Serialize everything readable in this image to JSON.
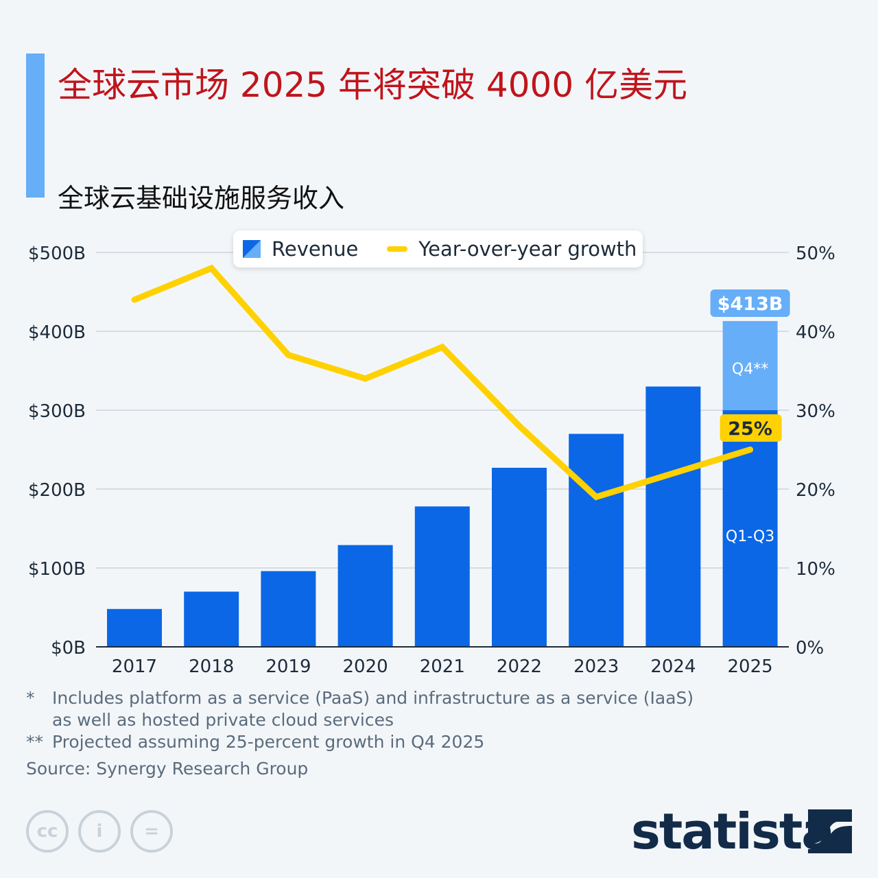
{
  "title": "全球云市场 2025 年将突破 4000 亿美元",
  "subtitle": "全球云基础设施服务收入",
  "legend": {
    "revenue": "Revenue",
    "growth": "Year-over-year growth"
  },
  "chart_data": {
    "type": "bar",
    "categories": [
      "2017",
      "2018",
      "2019",
      "2020",
      "2021",
      "2022",
      "2023",
      "2024",
      "2025"
    ],
    "series": [
      {
        "name": "Revenue",
        "unit": "$B",
        "values": [
          48,
          70,
          96,
          129,
          178,
          227,
          270,
          330,
          300
        ],
        "color": "#0b67e6"
      },
      {
        "name": "Revenue Q4 2025 (projected)",
        "values": [
          0,
          0,
          0,
          0,
          0,
          0,
          0,
          0,
          113
        ],
        "color": "#66aef8"
      },
      {
        "name": "Year-over-year growth",
        "type": "line",
        "axis": "right",
        "unit": "%",
        "values": [
          44,
          48,
          37,
          34,
          38,
          28,
          19,
          22,
          25
        ],
        "color": "#ffd100"
      }
    ],
    "ylim": [
      0,
      500
    ],
    "y2lim": [
      0,
      50
    ],
    "yticks": [
      "$0B",
      "$100B",
      "$200B",
      "$300B",
      "$400B",
      "$500B"
    ],
    "y2ticks": [
      "0%",
      "10%",
      "20%",
      "30%",
      "40%",
      "50%"
    ],
    "annotations": {
      "total_2025": "$413B",
      "growth_2025": "25%",
      "q4": "Q4**",
      "q1q3": "Q1-Q3"
    },
    "grid": true,
    "legend_position": "top"
  },
  "notes": [
    {
      "mark": "*",
      "text": "Includes platform as a service (PaaS) and infrastructure as a service (IaaS)"
    },
    {
      "mark": "",
      "text": "as well as hosted private cloud services"
    },
    {
      "mark": "**",
      "text": "Projected assuming 25-percent growth in Q4 2025"
    }
  ],
  "source": "Source: Synergy Research Group",
  "brand": "statista"
}
